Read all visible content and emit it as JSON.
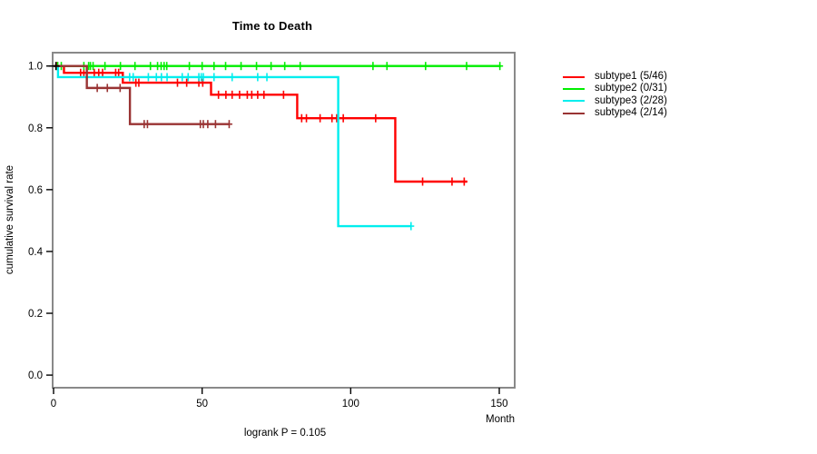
{
  "window": {
    "background": "#ffffff"
  },
  "chart_data": {
    "type": "line",
    "variant": "kaplan-meier-step",
    "title": "Time to Death",
    "xlabel": "Month",
    "ylabel": "cumulative survival rate",
    "footnote": "logrank P = 0.105",
    "xlim": [
      0,
      156
    ],
    "ylim": [
      0,
      1.04
    ],
    "x_ticks": [
      0,
      50,
      100,
      150
    ],
    "y_ticks": [
      "0.0",
      "0.2",
      "0.4",
      "0.6",
      "0.8",
      "1.0"
    ],
    "grid": false,
    "legend_position": "right-outside",
    "frame_color": "#898989",
    "tick_color": "#000000",
    "origin_mark": {
      "time": 0.8,
      "survival": 1.0,
      "color": "#000000"
    },
    "series": [
      {
        "name": "subtype1",
        "legend_label": "subtype1 (5/46)",
        "events": "5/46",
        "color": "#ff0000",
        "steps": [
          [
            0,
            1.0
          ],
          [
            3.5,
            0.978
          ],
          [
            23.3,
            0.946
          ],
          [
            53,
            0.907
          ],
          [
            82,
            0.831
          ],
          [
            115,
            0.626
          ]
        ],
        "end_time": 139.2,
        "censor_marks": [
          [
            1.2,
            1.0
          ],
          [
            9.1,
            0.978
          ],
          [
            10.2,
            0.978
          ],
          [
            13.7,
            0.978
          ],
          [
            15.2,
            0.978
          ],
          [
            16.5,
            0.978
          ],
          [
            20.9,
            0.978
          ],
          [
            21.9,
            0.978
          ],
          [
            27.7,
            0.946
          ],
          [
            28.7,
            0.946
          ],
          [
            41.7,
            0.946
          ],
          [
            44.8,
            0.946
          ],
          [
            48.9,
            0.946
          ],
          [
            50.2,
            0.946
          ],
          [
            55.5,
            0.907
          ],
          [
            58,
            0.907
          ],
          [
            60.1,
            0.907
          ],
          [
            62.6,
            0.907
          ],
          [
            65.2,
            0.907
          ],
          [
            66.7,
            0.907
          ],
          [
            68.7,
            0.907
          ],
          [
            70.8,
            0.907
          ],
          [
            77.4,
            0.907
          ],
          [
            83.5,
            0.831
          ],
          [
            85.1,
            0.831
          ],
          [
            89.7,
            0.831
          ],
          [
            93.7,
            0.831
          ],
          [
            95.3,
            0.831
          ],
          [
            97.5,
            0.831
          ],
          [
            108.4,
            0.831
          ],
          [
            124.2,
            0.626
          ],
          [
            134.1,
            0.626
          ],
          [
            138.2,
            0.626
          ]
        ]
      },
      {
        "name": "subtype2",
        "legend_label": "subtype2 (0/31)",
        "events": "0/31",
        "color": "#00ee00",
        "steps": [
          [
            0,
            1.0
          ]
        ],
        "end_time": 150.5,
        "censor_marks": [
          [
            1.4,
            1.0
          ],
          [
            2.6,
            1.0
          ],
          [
            10.2,
            1.0
          ],
          [
            11.8,
            1.0
          ],
          [
            12.4,
            1.0
          ],
          [
            13.3,
            1.0
          ],
          [
            17.3,
            1.0
          ],
          [
            22.5,
            1.0
          ],
          [
            27.4,
            1.0
          ],
          [
            32.6,
            1.0
          ],
          [
            35,
            1.0
          ],
          [
            36.2,
            1.0
          ],
          [
            37.2,
            1.0
          ],
          [
            38.1,
            1.0
          ],
          [
            45.7,
            1.0
          ],
          [
            50,
            1.0
          ],
          [
            54,
            1.0
          ],
          [
            57.9,
            1.0
          ],
          [
            63.1,
            1.0
          ],
          [
            68.3,
            1.0
          ],
          [
            73.2,
            1.0
          ],
          [
            77.8,
            1.0
          ],
          [
            83,
            1.0
          ],
          [
            107.5,
            1.0
          ],
          [
            112.2,
            1.0
          ],
          [
            125.2,
            1.0
          ],
          [
            139,
            1.0
          ],
          [
            150.2,
            1.0
          ]
        ]
      },
      {
        "name": "subtype3",
        "legend_label": "subtype3 (2/28)",
        "events": "2/28",
        "color": "#00eeee",
        "steps": [
          [
            0,
            1.0
          ],
          [
            1.5,
            0.964
          ],
          [
            95.8,
            0.482
          ]
        ],
        "end_time": 120.5,
        "censor_marks": [
          [
            25.6,
            0.964
          ],
          [
            26.8,
            0.964
          ],
          [
            31.9,
            0.964
          ],
          [
            34.6,
            0.964
          ],
          [
            36.3,
            0.964
          ],
          [
            38.2,
            0.964
          ],
          [
            43.3,
            0.964
          ],
          [
            45.3,
            0.964
          ],
          [
            48.9,
            0.964
          ],
          [
            49.7,
            0.964
          ],
          [
            50.4,
            0.964
          ],
          [
            54,
            0.964
          ],
          [
            60.1,
            0.964
          ],
          [
            68.7,
            0.964
          ],
          [
            71.8,
            0.964
          ],
          [
            120.3,
            0.482
          ]
        ]
      },
      {
        "name": "subtype4",
        "legend_label": "subtype4 (2/14)",
        "events": "2/14",
        "color": "#993333",
        "steps": [
          [
            0,
            1.0
          ],
          [
            11.2,
            0.929
          ],
          [
            25.7,
            0.812
          ]
        ],
        "end_time": 59.3,
        "censor_marks": [
          [
            14.7,
            0.929
          ],
          [
            18.1,
            0.929
          ],
          [
            22.4,
            0.929
          ],
          [
            30.5,
            0.812
          ],
          [
            31.6,
            0.812
          ],
          [
            49.4,
            0.812
          ],
          [
            50.4,
            0.812
          ],
          [
            51.9,
            0.812
          ],
          [
            54.5,
            0.812
          ],
          [
            59.1,
            0.812
          ]
        ]
      }
    ]
  }
}
